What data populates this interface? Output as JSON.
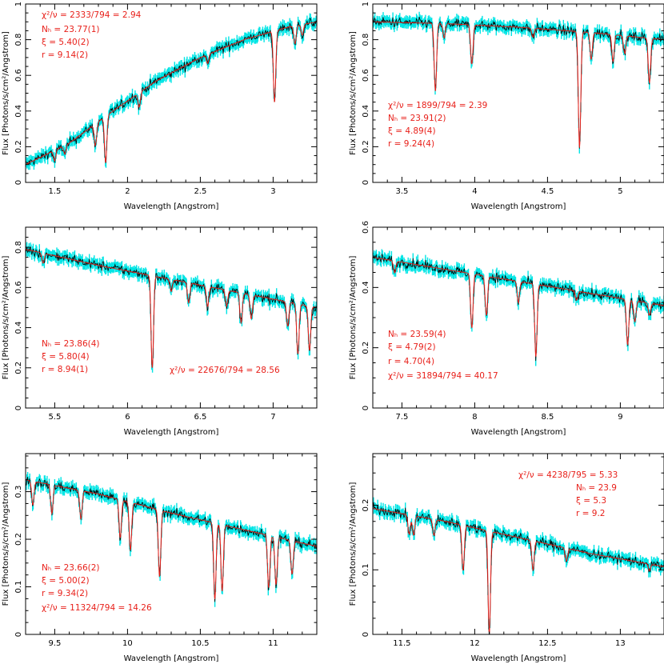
{
  "colors": {
    "data_error": "#00e5e5",
    "data_line": "#000000",
    "model": "#e8201a"
  },
  "chart_data": [
    {
      "type": "line",
      "xlabel": "Wavelength [Angstrom]",
      "ylabel": "Flux [Photons/s/cm²/Angstrom]",
      "xlim": [
        1.3,
        3.3
      ],
      "ylim": [
        0,
        1.0
      ],
      "xticks": [
        1.5,
        2,
        2.5,
        3
      ],
      "yticks": [
        0,
        0.2,
        0.4,
        0.6,
        0.8,
        1
      ],
      "continuum_x": [
        1.3,
        1.6,
        1.9,
        2.2,
        2.5,
        2.8,
        3.1,
        3.3
      ],
      "continuum_y": [
        0.1,
        0.22,
        0.4,
        0.57,
        0.7,
        0.8,
        0.87,
        0.9
      ],
      "model_absorption_lines": [
        {
          "x": 1.5,
          "depth": 0.06
        },
        {
          "x": 1.57,
          "depth": 0.05
        },
        {
          "x": 1.78,
          "depth": 0.12
        },
        {
          "x": 1.85,
          "depth": 0.26
        },
        {
          "x": 2.08,
          "depth": 0.08
        },
        {
          "x": 2.55,
          "depth": 0.05
        },
        {
          "x": 3.01,
          "depth": 0.4
        },
        {
          "x": 3.15,
          "depth": 0.1
        },
        {
          "x": 3.2,
          "depth": 0.06
        }
      ],
      "annotations": [
        {
          "label": "χ²/ν",
          "value": "= 2333/794 = 2.94"
        },
        {
          "label": "Nₕ",
          "value": "= 23.77(1)"
        },
        {
          "label": "ξ",
          "value": "= 5.40(2)"
        },
        {
          "label": "r",
          "value": "= 9.14(2)"
        }
      ]
    },
    {
      "type": "line",
      "xlabel": "Wavelength [Angstrom]",
      "ylabel": "Flux [Photons/s/cm²/Angstrom]",
      "xlim": [
        3.3,
        5.3
      ],
      "ylim": [
        0,
        1.0
      ],
      "xticks": [
        3.5,
        4,
        4.5,
        5
      ],
      "yticks": [
        0,
        0.2,
        0.4,
        0.6,
        0.8,
        1
      ],
      "continuum_x": [
        3.3,
        3.8,
        4.3,
        4.8,
        5.3
      ],
      "continuum_y": [
        0.9,
        0.89,
        0.87,
        0.84,
        0.8
      ],
      "model_absorption_lines": [
        {
          "x": 3.73,
          "depth": 0.38
        },
        {
          "x": 3.79,
          "depth": 0.08
        },
        {
          "x": 3.98,
          "depth": 0.22
        },
        {
          "x": 4.4,
          "depth": 0.05
        },
        {
          "x": 4.72,
          "depth": 0.65
        },
        {
          "x": 4.8,
          "depth": 0.15
        },
        {
          "x": 4.95,
          "depth": 0.15
        },
        {
          "x": 5.03,
          "depth": 0.1
        },
        {
          "x": 5.2,
          "depth": 0.25
        }
      ],
      "annotations": [
        {
          "label": "χ²/ν",
          "value": "= 1899/794 = 2.39"
        },
        {
          "label": "Nₕ",
          "value": "= 23.91(2)"
        },
        {
          "label": "ξ",
          "value": "= 4.89(4)"
        },
        {
          "label": "r",
          "value": "= 9.24(4)"
        }
      ]
    },
    {
      "type": "line",
      "xlabel": "Wavelength [Angstrom]",
      "ylabel": "Flux [Photons/s/cm²/Angstrom]",
      "xlim": [
        5.3,
        7.3
      ],
      "ylim": [
        0,
        0.9
      ],
      "xticks": [
        5.5,
        6,
        6.5,
        7
      ],
      "yticks": [
        0,
        0.2,
        0.4,
        0.6,
        0.8
      ],
      "continuum_x": [
        5.3,
        5.8,
        6.3,
        6.8,
        7.3
      ],
      "continuum_y": [
        0.79,
        0.71,
        0.64,
        0.57,
        0.5
      ],
      "model_absorption_lines": [
        {
          "x": 5.42,
          "depth": 0.05
        },
        {
          "x": 6.17,
          "depth": 0.46
        },
        {
          "x": 6.3,
          "depth": 0.06
        },
        {
          "x": 6.42,
          "depth": 0.1
        },
        {
          "x": 6.55,
          "depth": 0.1
        },
        {
          "x": 6.68,
          "depth": 0.08
        },
        {
          "x": 6.78,
          "depth": 0.15
        },
        {
          "x": 6.85,
          "depth": 0.12
        },
        {
          "x": 7.1,
          "depth": 0.12
        },
        {
          "x": 7.17,
          "depth": 0.25
        },
        {
          "x": 7.25,
          "depth": 0.22
        }
      ],
      "annotations": [
        {
          "label": "Nₕ",
          "value": "= 23.86(4)"
        },
        {
          "label": "ξ",
          "value": "= 5.80(4)"
        },
        {
          "label": "r",
          "value": "= 8.94(1)"
        },
        {
          "label": "χ²/ν",
          "value": "= 22676/794 = 28.56"
        }
      ]
    },
    {
      "type": "line",
      "xlabel": "Wavelength [Angstrom]",
      "ylabel": "Flux [Photons/s/cm²/Angstrom]",
      "xlim": [
        7.3,
        9.3
      ],
      "ylim": [
        0,
        0.6
      ],
      "xticks": [
        7.5,
        8,
        8.5,
        9
      ],
      "yticks": [
        0,
        0.2,
        0.4,
        0.6
      ],
      "continuum_x": [
        7.3,
        7.8,
        8.3,
        8.8,
        9.3
      ],
      "continuum_y": [
        0.5,
        0.46,
        0.42,
        0.38,
        0.34
      ],
      "model_absorption_lines": [
        {
          "x": 7.45,
          "depth": 0.04
        },
        {
          "x": 7.98,
          "depth": 0.18
        },
        {
          "x": 8.08,
          "depth": 0.13
        },
        {
          "x": 8.3,
          "depth": 0.07
        },
        {
          "x": 8.42,
          "depth": 0.24
        },
        {
          "x": 8.7,
          "depth": 0.03
        },
        {
          "x": 9.05,
          "depth": 0.15
        },
        {
          "x": 9.1,
          "depth": 0.07
        },
        {
          "x": 9.2,
          "depth": 0.04
        }
      ],
      "annotations": [
        {
          "label": "Nₕ",
          "value": "= 23.59(4)"
        },
        {
          "label": "ξ",
          "value": "= 4.79(2)"
        },
        {
          "label": "r",
          "value": "= 4.70(4)"
        },
        {
          "label": "χ²/ν",
          "value": "= 31894/794 = 40.17"
        }
      ]
    },
    {
      "type": "line",
      "xlabel": "Wavelength [Angstrom]",
      "ylabel": "Flux [Photons/s/cm²/Angstrom]",
      "xlim": [
        9.3,
        11.3
      ],
      "ylim": [
        0,
        0.38
      ],
      "xticks": [
        9.5,
        10,
        10.5,
        11
      ],
      "yticks": [
        0,
        0.1,
        0.2,
        0.3
      ],
      "continuum_x": [
        9.3,
        9.8,
        10.3,
        10.8,
        11.3
      ],
      "continuum_y": [
        0.325,
        0.295,
        0.255,
        0.22,
        0.185
      ],
      "model_absorption_lines": [
        {
          "x": 9.35,
          "depth": 0.05
        },
        {
          "x": 9.48,
          "depth": 0.06
        },
        {
          "x": 9.68,
          "depth": 0.06
        },
        {
          "x": 9.95,
          "depth": 0.08
        },
        {
          "x": 10.02,
          "depth": 0.1
        },
        {
          "x": 10.22,
          "depth": 0.14
        },
        {
          "x": 10.6,
          "depth": 0.16
        },
        {
          "x": 10.65,
          "depth": 0.14
        },
        {
          "x": 10.97,
          "depth": 0.11
        },
        {
          "x": 11.02,
          "depth": 0.1
        },
        {
          "x": 11.13,
          "depth": 0.07
        }
      ],
      "annotations": [
        {
          "label": "Nₕ",
          "value": "= 23.66(2)"
        },
        {
          "label": "ξ",
          "value": "= 5.00(2)"
        },
        {
          "label": "r",
          "value": "= 9.34(2)"
        },
        {
          "label": "χ²/ν",
          "value": "= 11324/794 = 14.26"
        }
      ]
    },
    {
      "type": "line",
      "xlabel": "Wavelength [Angstrom]",
      "ylabel": "Flux [Photons/s/cm²/Angstrom]",
      "xlim": [
        11.3,
        13.3
      ],
      "ylim": [
        0,
        0.28
      ],
      "xticks": [
        11.5,
        12,
        12.5,
        13
      ],
      "yticks": [
        0,
        0.1,
        0.2
      ],
      "continuum_x": [
        11.3,
        11.8,
        12.3,
        12.8,
        13.3
      ],
      "continuum_y": [
        0.195,
        0.175,
        0.15,
        0.125,
        0.105
      ],
      "model_absorption_lines": [
        {
          "x": 11.55,
          "depth": 0.03
        },
        {
          "x": 11.58,
          "depth": 0.03
        },
        {
          "x": 11.72,
          "depth": 0.025
        },
        {
          "x": 11.92,
          "depth": 0.07
        },
        {
          "x": 12.1,
          "depth": 0.16
        },
        {
          "x": 12.4,
          "depth": 0.045
        },
        {
          "x": 12.63,
          "depth": 0.02
        },
        {
          "x": 13.2,
          "depth": 0.01
        }
      ],
      "annotations": [
        {
          "label": "χ²/ν",
          "value": "= 4238/795 = 5.33"
        },
        {
          "label": "Nₕ",
          "value": "= 23.9"
        },
        {
          "label": "ξ",
          "value": "= 5.3"
        },
        {
          "label": "r",
          "value": "= 9.2"
        }
      ]
    }
  ]
}
